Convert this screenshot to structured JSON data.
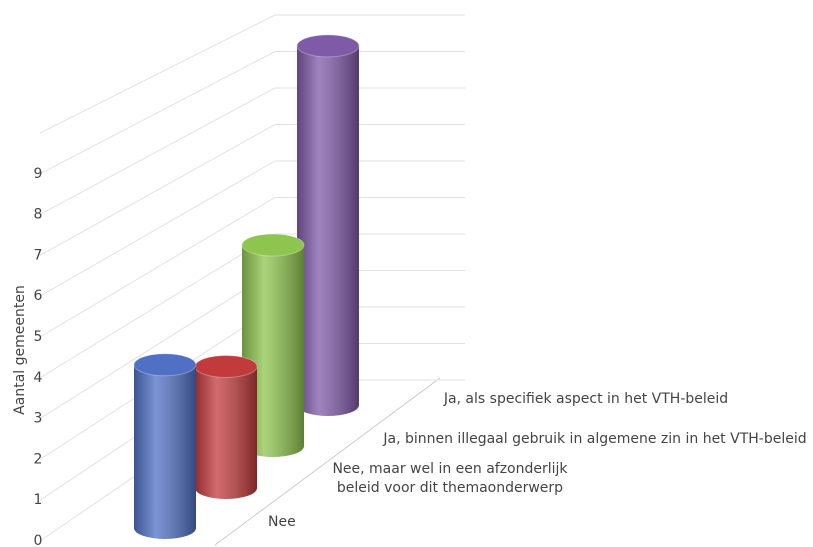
{
  "chart_data": {
    "type": "bar3d",
    "y_label": "Aantal gemeenten",
    "categories": [
      "Nee",
      "Nee, maar wel in een afzonderlijk beleid voor dit themaonderwerp",
      "Ja, binnen illegaal gebruik in algemene zin in het VTH-beleid",
      "Ja, als specifiek aspect in het VTH-beleid"
    ],
    "values": [
      4,
      3,
      5,
      9
    ],
    "colors": [
      "#4f70c4",
      "#c23a3c",
      "#8dc54e",
      "#7f5aa8"
    ],
    "ylim": [
      0,
      10
    ],
    "yticks": [
      0,
      1,
      2,
      3,
      4,
      5,
      6,
      7,
      8,
      9
    ],
    "grid": true
  }
}
